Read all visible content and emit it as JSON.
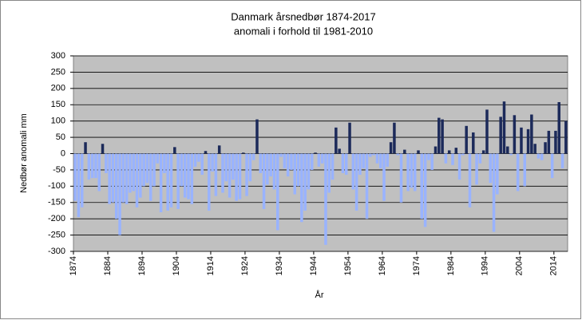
{
  "chart_data": {
    "type": "bar",
    "title": "Danmark årsnedbør 1874-2017",
    "subtitle": "anomali i forhold til 1981-2010",
    "y_label": "Nedbør anomali mm",
    "x_label": "År",
    "x": [
      1874,
      1875,
      1876,
      1877,
      1878,
      1879,
      1880,
      1881,
      1882,
      1883,
      1884,
      1885,
      1886,
      1887,
      1888,
      1889,
      1890,
      1891,
      1892,
      1893,
      1894,
      1895,
      1896,
      1897,
      1898,
      1899,
      1900,
      1901,
      1902,
      1903,
      1904,
      1905,
      1906,
      1907,
      1908,
      1909,
      1910,
      1911,
      1912,
      1913,
      1914,
      1915,
      1916,
      1917,
      1918,
      1919,
      1920,
      1921,
      1922,
      1923,
      1924,
      1925,
      1926,
      1927,
      1928,
      1929,
      1930,
      1931,
      1932,
      1933,
      1934,
      1935,
      1936,
      1937,
      1938,
      1939,
      1940,
      1941,
      1942,
      1943,
      1944,
      1945,
      1946,
      1947,
      1948,
      1949,
      1950,
      1951,
      1952,
      1953,
      1954,
      1955,
      1956,
      1957,
      1958,
      1959,
      1960,
      1961,
      1962,
      1963,
      1964,
      1965,
      1966,
      1967,
      1968,
      1969,
      1970,
      1971,
      1972,
      1973,
      1974,
      1975,
      1976,
      1977,
      1978,
      1979,
      1980,
      1981,
      1982,
      1983,
      1984,
      1985,
      1986,
      1987,
      1988,
      1989,
      1990,
      1991,
      1992,
      1993,
      1994,
      1995,
      1996,
      1997,
      1998,
      1999,
      2000,
      2001,
      2002,
      2003,
      2004,
      2005,
      2006,
      2007,
      2008,
      2009,
      2010,
      2011,
      2012,
      2013,
      2014,
      2015,
      2016,
      2017
    ],
    "values": [
      -145,
      -195,
      -165,
      35,
      -80,
      -75,
      -75,
      -115,
      30,
      -60,
      -155,
      -150,
      -200,
      -250,
      -150,
      -155,
      -120,
      -115,
      -165,
      -135,
      -100,
      -90,
      -145,
      -100,
      -30,
      -180,
      -60,
      -175,
      -165,
      20,
      -170,
      -100,
      -135,
      -140,
      -155,
      -40,
      -25,
      -65,
      8,
      -175,
      -55,
      -130,
      25,
      -120,
      -85,
      -135,
      -80,
      -145,
      -140,
      3,
      -130,
      -85,
      -20,
      105,
      -60,
      -170,
      -95,
      -70,
      -110,
      -235,
      -10,
      -45,
      -70,
      -50,
      -125,
      -100,
      -210,
      -175,
      -110,
      -50,
      3,
      -40,
      -30,
      -280,
      -120,
      -80,
      80,
      15,
      -60,
      -65,
      95,
      -110,
      -175,
      -65,
      -45,
      -200,
      -10,
      -5,
      -30,
      -45,
      -145,
      -40,
      35,
      95,
      -5,
      -150,
      12,
      -115,
      -105,
      -115,
      10,
      -200,
      -225,
      -20,
      -50,
      22,
      110,
      105,
      -30,
      10,
      -35,
      18,
      -80,
      -5,
      85,
      -165,
      65,
      -95,
      -30,
      10,
      135,
      -90,
      -240,
      -125,
      113,
      160,
      22,
      -5,
      118,
      -115,
      80,
      -100,
      75,
      120,
      30,
      -15,
      -20,
      35,
      70,
      -75,
      70,
      158,
      -45,
      100
    ],
    "positive_color": "#1c2a5a",
    "negative_color": "#99b3ff",
    "xlim": [
      1874,
      2018
    ],
    "xticks": [
      1874,
      1884,
      1894,
      1904,
      1914,
      1924,
      1934,
      1944,
      1954,
      1964,
      1974,
      1984,
      1994,
      2004,
      2014
    ],
    "ylim": [
      -300,
      300
    ],
    "yticks": [
      -300,
      -250,
      -200,
      -150,
      -100,
      -50,
      0,
      50,
      100,
      150,
      200,
      250,
      300
    ],
    "grid": true
  }
}
